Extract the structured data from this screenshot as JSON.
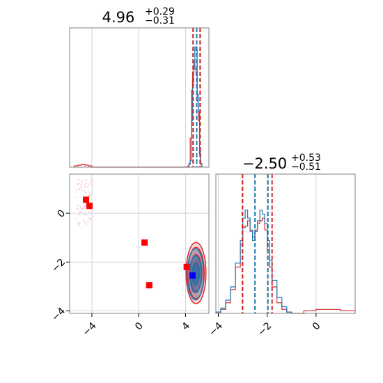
{
  "chart_data": {
    "type": "corner",
    "parameters": [
      {
        "title_value": "4.96",
        "title_upper": "+0.29",
        "title_lower": "−0.31",
        "range": [
          -5.9,
          6.0
        ],
        "ticks": [
          -4,
          0,
          4
        ],
        "tick_labels": [
          "−4",
          "0",
          "4"
        ],
        "quantile_lines_blue": [
          4.65,
          4.96,
          5.25
        ],
        "quantile_lines_red": [
          4.65,
          5.25
        ]
      },
      {
        "title_value": "−2.50",
        "title_upper": "+0.53",
        "title_lower": "−0.51",
        "range": [
          -4.1,
          1.6
        ],
        "ticks": [
          -4,
          -2,
          0
        ],
        "tick_labels": [
          "−4",
          "−2",
          "0"
        ],
        "quantile_lines_blue": [
          -3.01,
          -2.5,
          -1.97
        ],
        "quantile_lines_red": [
          -3.01,
          -1.8
        ]
      }
    ],
    "hist1_blue": {
      "edges": [
        4.2,
        4.3,
        4.4,
        4.5,
        4.6,
        4.7,
        4.8,
        4.9,
        5.0,
        5.1,
        5.2,
        5.3,
        5.4
      ],
      "heights": [
        0.0,
        0.02,
        0.05,
        0.35,
        0.62,
        0.75,
        0.91,
        0.88,
        0.55,
        0.42,
        0.12,
        0.03
      ]
    },
    "hist1_red": {
      "edges": [
        -5.5,
        -5.2,
        -4.9,
        -4.6,
        -4.3,
        -4.0,
        4.2,
        4.3,
        4.4,
        4.5,
        4.6,
        4.7,
        4.8,
        4.9,
        5.0,
        5.1,
        5.2,
        5.3,
        5.4
      ],
      "heights": [
        0.01,
        0.015,
        0.02,
        0.015,
        0.01,
        0.0,
        0.01,
        0.03,
        0.22,
        0.58,
        0.72,
        0.8,
        0.74,
        0.7,
        0.5,
        0.35,
        0.1,
        0.02
      ]
    },
    "hist2_blue": {
      "edges": [
        -4.1,
        -3.9,
        -3.7,
        -3.5,
        -3.3,
        -3.1,
        -3.0,
        -2.9,
        -2.8,
        -2.7,
        -2.6,
        -2.5,
        -2.4,
        -2.3,
        -2.2,
        -2.1,
        -2.0,
        -1.9,
        -1.8,
        -1.6,
        -1.4,
        -1.2,
        -1.0
      ],
      "heights": [
        0.01,
        0.04,
        0.1,
        0.2,
        0.38,
        0.55,
        0.72,
        0.78,
        0.72,
        0.63,
        0.55,
        0.62,
        0.7,
        0.78,
        0.75,
        0.68,
        0.55,
        0.4,
        0.25,
        0.12,
        0.05,
        0.01
      ]
    },
    "hist2_red": {
      "edges": [
        -4.1,
        -3.9,
        -3.7,
        -3.5,
        -3.3,
        -3.1,
        -3.0,
        -2.9,
        -2.8,
        -2.7,
        -2.6,
        -2.5,
        -2.4,
        -2.3,
        -2.2,
        -2.1,
        -2.0,
        -1.9,
        -1.8,
        -1.6,
        -1.4,
        -1.2,
        -1.0,
        -0.5,
        0.0,
        0.5,
        1.0,
        1.6
      ],
      "heights": [
        0.01,
        0.03,
        0.08,
        0.18,
        0.35,
        0.52,
        0.65,
        0.66,
        0.7,
        0.62,
        0.58,
        0.63,
        0.68,
        0.7,
        0.72,
        0.63,
        0.48,
        0.35,
        0.2,
        0.08,
        0.03,
        0.01,
        0.0,
        0.02,
        0.03,
        0.03,
        0.02
      ]
    },
    "scatter_points": [
      {
        "x": -4.5,
        "y": 0.55,
        "color": "red"
      },
      {
        "x": -4.2,
        "y": 0.3,
        "color": "red"
      },
      {
        "x": 0.5,
        "y": -1.2,
        "color": "red"
      },
      {
        "x": 0.9,
        "y": -2.95,
        "color": "red"
      },
      {
        "x": 4.1,
        "y": -2.2,
        "color": "red"
      },
      {
        "x": 4.6,
        "y": -2.55,
        "color": "blue"
      }
    ],
    "contours_red": [
      {
        "cx": 4.9,
        "cy": -2.45,
        "rx": 0.85,
        "ry": 1.25
      },
      {
        "cx": 4.9,
        "cy": -2.45,
        "rx": 0.7,
        "ry": 1.05
      },
      {
        "cx": 4.9,
        "cy": -2.45,
        "rx": 0.5,
        "ry": 0.75
      },
      {
        "cx": 4.9,
        "cy": -2.45,
        "rx": 0.3,
        "ry": 0.45
      }
    ],
    "contours_blue": [
      {
        "cx": 4.85,
        "cy": -2.5,
        "rx": 0.7,
        "ry": 1.05
      },
      {
        "cx": 4.85,
        "cy": -2.5,
        "rx": 0.5,
        "ry": 0.75
      },
      {
        "cx": 4.85,
        "cy": -2.5,
        "rx": 0.3,
        "ry": 0.45
      }
    ],
    "sample_cloud_region": {
      "x": [
        -5.3,
        -3.8
      ],
      "y": [
        -0.5,
        1.4
      ]
    },
    "grid": true,
    "colors": {
      "blue": "#1f77b4",
      "red": "#d62728",
      "marker_red": "#ff0000",
      "marker_blue": "#0000ff"
    }
  }
}
